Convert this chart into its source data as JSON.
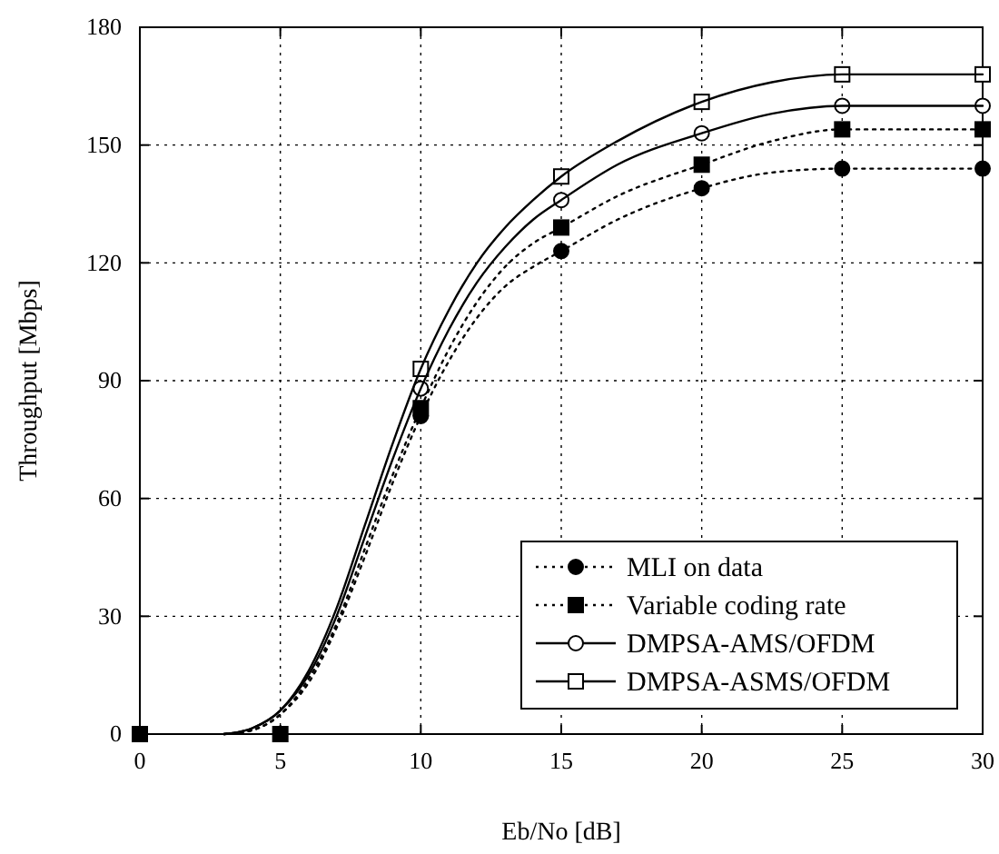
{
  "chart_data": {
    "type": "line",
    "xlabel": "Eb/No [dB]",
    "ylabel": "Throughput [Mbps]",
    "xlim": [
      0,
      30
    ],
    "ylim": [
      0,
      180
    ],
    "xticks": [
      0,
      5,
      10,
      15,
      20,
      25,
      30
    ],
    "yticks": [
      0,
      30,
      60,
      90,
      120,
      150,
      180
    ],
    "grid": true,
    "legend": "bottom right",
    "series": [
      {
        "color": "#000000",
        "line_style": "dotted",
        "marker": "none",
        "x": [
          3,
          4,
          5,
          6,
          7,
          8,
          9,
          10,
          11,
          12,
          13,
          14,
          15,
          17,
          20,
          22.5,
          25,
          30
        ],
        "values": [
          0,
          1,
          5,
          13,
          27,
          45,
          64,
          81,
          95,
          106,
          114,
          119,
          123,
          131,
          139,
          143,
          144,
          144
        ]
      },
      {
        "color": "#000000",
        "line_style": "dotted",
        "marker": "none",
        "x": [
          3,
          4,
          5,
          6,
          7,
          8,
          9,
          10,
          11,
          12,
          13,
          14,
          15,
          17,
          20,
          22.5,
          25,
          30
        ],
        "values": [
          0,
          1,
          5,
          14,
          28,
          47,
          66,
          83,
          98,
          110,
          119,
          125,
          129,
          137,
          145,
          151,
          154,
          154
        ]
      },
      {
        "color": "#000000",
        "line_style": "solid",
        "marker": "none",
        "x": [
          3,
          4,
          5,
          6,
          7,
          8,
          9,
          10,
          11,
          12,
          13,
          14,
          15,
          17,
          20,
          22.5,
          25,
          30
        ],
        "values": [
          0,
          1.5,
          6,
          15,
          30,
          50,
          70,
          88,
          103,
          115,
          124,
          131,
          136,
          145,
          153,
          158,
          160,
          160
        ]
      },
      {
        "color": "#000000",
        "line_style": "solid",
        "marker": "none",
        "x": [
          3,
          4,
          5,
          6,
          7,
          8,
          9,
          10,
          11,
          12,
          13,
          14,
          15,
          17,
          20,
          22.5,
          25,
          30
        ],
        "values": [
          0,
          1.5,
          6,
          16,
          32,
          53,
          74,
          93,
          108,
          120,
          129,
          136,
          142,
          151,
          161,
          166,
          168,
          168
        ]
      },
      {
        "type": "scatter",
        "name": "MLI on data",
        "color": "#000000",
        "marker": "circle",
        "line_style": "dotted",
        "x": [
          10,
          15,
          20,
          25,
          30
        ],
        "values": [
          81,
          123,
          139,
          144,
          144
        ]
      },
      {
        "type": "scatter",
        "name": "Variable coding rate",
        "color": "#000000",
        "marker": "square",
        "line_style": "dotted",
        "x": [
          0,
          5,
          10,
          15,
          20,
          25,
          30
        ],
        "values": [
          0,
          0,
          83,
          129,
          145,
          154,
          154
        ]
      },
      {
        "type": "scatter",
        "name": "DMPSA-AMS/OFDM",
        "color": "#ffffff",
        "marker": "circle",
        "line_style": "solid",
        "x": [
          10,
          15,
          20,
          25,
          30
        ],
        "values": [
          88,
          136,
          153,
          160,
          160
        ]
      },
      {
        "type": "scatter",
        "name": "DMPSA-ASMS/OFDM",
        "color": "#ffffff",
        "marker": "square",
        "line_style": "solid",
        "x": [
          10,
          15,
          20,
          25,
          30
        ],
        "values": [
          93,
          142,
          161,
          168,
          168
        ]
      }
    ]
  }
}
